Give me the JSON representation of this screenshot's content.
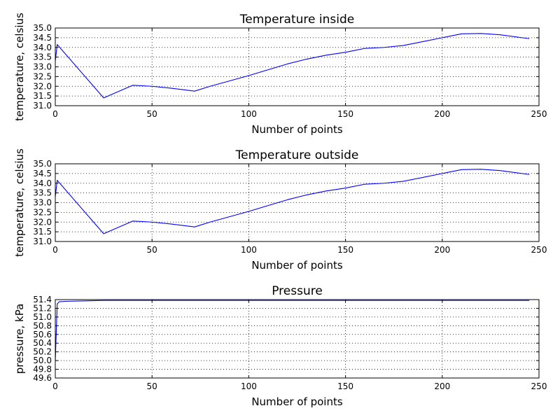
{
  "colors": {
    "line": "#0000ff",
    "grid": "#000000",
    "axes": "#000000",
    "background": "#ffffff"
  },
  "chart_data": [
    {
      "type": "line",
      "title": "Temperature inside",
      "xlabel": "Number of points",
      "ylabel": "temperature, celsius",
      "xlim": [
        0,
        250
      ],
      "ylim": [
        31.0,
        35.0
      ],
      "xticks": [
        0,
        50,
        100,
        150,
        200,
        250
      ],
      "yticks": [
        31.0,
        31.5,
        32.0,
        32.5,
        33.0,
        33.5,
        34.0,
        34.5,
        35.0
      ],
      "xtick_labels": [
        "0",
        "50",
        "100",
        "150",
        "200",
        "250"
      ],
      "ytick_labels": [
        "31.0",
        "31.5",
        "32.0",
        "32.5",
        "33.0",
        "33.5",
        "34.0",
        "34.5",
        "35.0"
      ],
      "grid": true,
      "series": [
        {
          "x": [
            0,
            1,
            25,
            40,
            50,
            60,
            72,
            80,
            100,
            110,
            120,
            130,
            140,
            150,
            160,
            170,
            180,
            190,
            200,
            210,
            220,
            230,
            245
          ],
          "y": [
            33.3,
            34.15,
            31.4,
            32.05,
            32.0,
            31.9,
            31.75,
            32.0,
            32.55,
            32.85,
            33.15,
            33.4,
            33.6,
            33.75,
            33.95,
            34.0,
            34.1,
            34.3,
            34.5,
            34.7,
            34.72,
            34.65,
            34.45
          ]
        }
      ]
    },
    {
      "type": "line",
      "title": "Temperature outside",
      "xlabel": "Number of points",
      "ylabel": "temperature, celsius",
      "xlim": [
        0,
        250
      ],
      "ylim": [
        31.0,
        35.0
      ],
      "xticks": [
        0,
        50,
        100,
        150,
        200,
        250
      ],
      "yticks": [
        31.0,
        31.5,
        32.0,
        32.5,
        33.0,
        33.5,
        34.0,
        34.5,
        35.0
      ],
      "xtick_labels": [
        "0",
        "50",
        "100",
        "150",
        "200",
        "250"
      ],
      "ytick_labels": [
        "31.0",
        "31.5",
        "32.0",
        "32.5",
        "33.0",
        "33.5",
        "34.0",
        "34.5",
        "35.0"
      ],
      "grid": true,
      "series": [
        {
          "x": [
            0,
            1,
            25,
            40,
            50,
            60,
            72,
            80,
            100,
            110,
            120,
            130,
            140,
            150,
            160,
            170,
            180,
            190,
            200,
            210,
            220,
            230,
            245
          ],
          "y": [
            33.3,
            34.15,
            31.4,
            32.05,
            32.0,
            31.9,
            31.75,
            32.0,
            32.55,
            32.85,
            33.15,
            33.4,
            33.6,
            33.75,
            33.95,
            34.0,
            34.1,
            34.3,
            34.5,
            34.7,
            34.72,
            34.65,
            34.45
          ]
        }
      ]
    },
    {
      "type": "line",
      "title": "Pressure",
      "xlabel": "Number of points",
      "ylabel": "pressure, kPa",
      "xlim": [
        0,
        250
      ],
      "ylim": [
        49.6,
        51.4
      ],
      "xticks": [
        0,
        50,
        100,
        150,
        200,
        250
      ],
      "yticks": [
        49.6,
        49.8,
        50.0,
        50.2,
        50.4,
        50.6,
        50.8,
        51.0,
        51.2,
        51.4
      ],
      "xtick_labels": [
        "0",
        "50",
        "100",
        "150",
        "200",
        "250"
      ],
      "ytick_labels": [
        "49.6",
        "49.8",
        "50.0",
        "50.2",
        "50.4",
        "50.6",
        "50.8",
        "51.0",
        "51.2",
        "51.4"
      ],
      "grid": true,
      "series": [
        {
          "x": [
            0,
            1,
            2,
            5,
            25,
            50,
            100,
            150,
            200,
            245
          ],
          "y": [
            50.0,
            51.3,
            51.35,
            51.36,
            51.38,
            51.38,
            51.38,
            51.38,
            51.38,
            51.38
          ]
        }
      ]
    }
  ]
}
